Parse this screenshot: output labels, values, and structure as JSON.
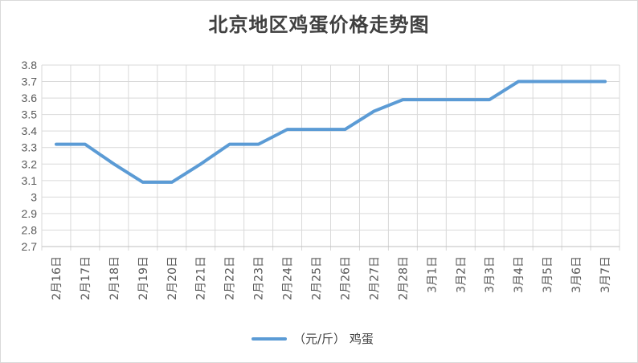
{
  "chart_data": {
    "type": "line",
    "title": "北京地区鸡蛋价格走势图",
    "xlabel": "",
    "ylabel": "",
    "categories": [
      "2月16日",
      "2月17日",
      "2月18日",
      "2月19日",
      "2月20日",
      "2月21日",
      "2月22日",
      "2月23日",
      "2月24日",
      "2月25日",
      "2月26日",
      "2月27日",
      "2月28日",
      "3月1日",
      "3月2日",
      "3月3日",
      "3月4日",
      "3月5日",
      "3月6日",
      "3月7日"
    ],
    "series": [
      {
        "name": "（元/斤） 鸡蛋",
        "color": "#5b9bd5",
        "values": [
          3.32,
          3.32,
          3.2,
          3.09,
          3.09,
          3.2,
          3.32,
          3.32,
          3.41,
          3.41,
          3.41,
          3.52,
          3.59,
          3.59,
          3.59,
          3.59,
          3.7,
          3.7,
          3.7,
          3.7
        ]
      }
    ],
    "ylim": [
      2.7,
      3.8
    ],
    "yticks": [
      "2.7",
      "2.8",
      "2.9",
      "3",
      "3.1",
      "3.2",
      "3.3",
      "3.4",
      "3.5",
      "3.6",
      "3.7",
      "3.8"
    ],
    "grid": true,
    "legend_position": "bottom"
  }
}
